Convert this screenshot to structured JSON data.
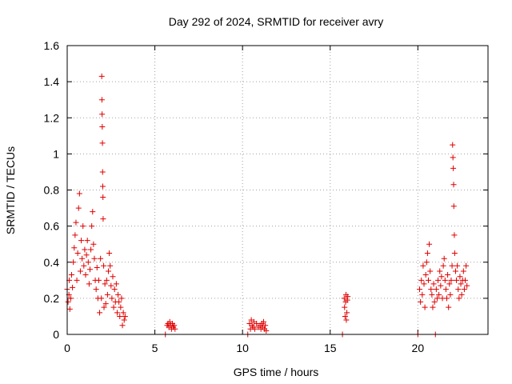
{
  "chart_data": {
    "type": "scatter",
    "title": "Day 292 of 2024, SRMTID for receiver avry",
    "xlabel": "GPS time / hours",
    "ylabel": "SRMTID / TECUs",
    "xlim": [
      0,
      24
    ],
    "ylim": [
      0,
      1.6
    ],
    "xticks": [
      0,
      5,
      10,
      15,
      20
    ],
    "xtick_labels": [
      "0",
      "5",
      "10",
      "15",
      "20"
    ],
    "yticks": [
      0,
      0.2,
      0.4,
      0.6,
      0.8,
      1.0,
      1.2,
      1.4,
      1.6
    ],
    "ytick_labels": [
      "0",
      "0.2",
      "0.4",
      "0.6",
      "0.8",
      "1",
      "1.2",
      "1.4",
      "1.6"
    ],
    "grid": true,
    "marker": "+",
    "color": "#e00000",
    "series": [
      {
        "name": "SRMTID",
        "points": [
          [
            0.0,
            0.25
          ],
          [
            0.05,
            0.18
          ],
          [
            0.1,
            0.22
          ],
          [
            0.12,
            0.3
          ],
          [
            0.15,
            0.14
          ],
          [
            0.2,
            0.2
          ],
          [
            0.25,
            0.33
          ],
          [
            0.3,
            0.26
          ],
          [
            0.35,
            0.4
          ],
          [
            0.4,
            0.48
          ],
          [
            0.45,
            0.55
          ],
          [
            0.5,
            0.62
          ],
          [
            0.55,
            0.3
          ],
          [
            0.6,
            0.45
          ],
          [
            0.65,
            0.7
          ],
          [
            0.7,
            0.78
          ],
          [
            0.75,
            0.35
          ],
          [
            0.8,
            0.52
          ],
          [
            0.85,
            0.42
          ],
          [
            0.9,
            0.6
          ],
          [
            0.95,
            0.38
          ],
          [
            1.0,
            0.47
          ],
          [
            1.05,
            0.33
          ],
          [
            1.1,
            0.44
          ],
          [
            1.15,
            0.52
          ],
          [
            1.2,
            0.4
          ],
          [
            1.25,
            0.28
          ],
          [
            1.3,
            0.36
          ],
          [
            1.35,
            0.47
          ],
          [
            1.4,
            0.6
          ],
          [
            1.45,
            0.68
          ],
          [
            1.5,
            0.5
          ],
          [
            1.55,
            0.42
          ],
          [
            1.6,
            0.3
          ],
          [
            1.65,
            0.25
          ],
          [
            1.7,
            0.37
          ],
          [
            1.75,
            0.2
          ],
          [
            1.8,
            0.3
          ],
          [
            1.85,
            0.12
          ],
          [
            1.9,
            0.42
          ],
          [
            1.95,
            0.2
          ],
          [
            1.97,
            1.43
          ],
          [
            1.98,
            1.3
          ],
          [
            1.99,
            1.22
          ],
          [
            2.0,
            1.15
          ],
          [
            2.01,
            1.06
          ],
          [
            2.02,
            0.9
          ],
          [
            2.03,
            0.82
          ],
          [
            2.04,
            0.76
          ],
          [
            2.05,
            0.64
          ],
          [
            2.08,
            0.38
          ],
          [
            2.1,
            0.15
          ],
          [
            2.15,
            0.28
          ],
          [
            2.2,
            0.17
          ],
          [
            2.25,
            0.3
          ],
          [
            2.3,
            0.22
          ],
          [
            2.35,
            0.35
          ],
          [
            2.4,
            0.45
          ],
          [
            2.45,
            0.38
          ],
          [
            2.5,
            0.27
          ],
          [
            2.55,
            0.2
          ],
          [
            2.6,
            0.32
          ],
          [
            2.65,
            0.15
          ],
          [
            2.7,
            0.25
          ],
          [
            2.75,
            0.18
          ],
          [
            2.8,
            0.28
          ],
          [
            2.85,
            0.12
          ],
          [
            2.9,
            0.22
          ],
          [
            2.95,
            0.18
          ],
          [
            3.0,
            0.1
          ],
          [
            3.05,
            0.15
          ],
          [
            3.1,
            0.2
          ],
          [
            3.15,
            0.05
          ],
          [
            3.2,
            0.12
          ],
          [
            3.25,
            0.08
          ],
          [
            3.3,
            0.1
          ],
          [
            5.6,
            0.0
          ],
          [
            5.7,
            0.05
          ],
          [
            5.75,
            0.06
          ],
          [
            5.8,
            0.04
          ],
          [
            5.85,
            0.07
          ],
          [
            5.9,
            0.05
          ],
          [
            5.95,
            0.03
          ],
          [
            6.0,
            0.06
          ],
          [
            6.05,
            0.04
          ],
          [
            6.1,
            0.05
          ],
          [
            6.15,
            0.03
          ],
          [
            10.3,
            0.0
          ],
          [
            10.4,
            0.06
          ],
          [
            10.45,
            0.03
          ],
          [
            10.5,
            0.08
          ],
          [
            10.55,
            0.05
          ],
          [
            10.6,
            0.04
          ],
          [
            10.65,
            0.07
          ],
          [
            10.7,
            0.03
          ],
          [
            10.8,
            0.06
          ],
          [
            10.9,
            0.04
          ],
          [
            11.0,
            0.05
          ],
          [
            11.05,
            0.03
          ],
          [
            11.1,
            0.06
          ],
          [
            11.15,
            0.04
          ],
          [
            11.2,
            0.07
          ],
          [
            11.25,
            0.03
          ],
          [
            11.3,
            0.05
          ],
          [
            11.35,
            0.02
          ],
          [
            15.7,
            0.0
          ],
          [
            15.8,
            0.2
          ],
          [
            15.82,
            0.15
          ],
          [
            15.85,
            0.1
          ],
          [
            15.88,
            0.18
          ],
          [
            15.9,
            0.22
          ],
          [
            15.92,
            0.08
          ],
          [
            15.95,
            0.12
          ],
          [
            15.98,
            0.19
          ],
          [
            16.0,
            0.21
          ],
          [
            20.0,
            0.0
          ],
          [
            20.1,
            0.25
          ],
          [
            20.15,
            0.18
          ],
          [
            20.2,
            0.3
          ],
          [
            20.25,
            0.22
          ],
          [
            20.3,
            0.38
          ],
          [
            20.35,
            0.28
          ],
          [
            20.4,
            0.15
          ],
          [
            20.45,
            0.33
          ],
          [
            20.5,
            0.4
          ],
          [
            20.55,
            0.45
          ],
          [
            20.6,
            0.3
          ],
          [
            20.65,
            0.5
          ],
          [
            20.7,
            0.35
          ],
          [
            20.75,
            0.25
          ],
          [
            20.8,
            0.22
          ],
          [
            20.85,
            0.15
          ],
          [
            20.9,
            0.28
          ],
          [
            20.95,
            0.18
          ],
          [
            21.0,
            0.0
          ],
          [
            21.05,
            0.25
          ],
          [
            21.1,
            0.2
          ],
          [
            21.15,
            0.3
          ],
          [
            21.2,
            0.22
          ],
          [
            21.25,
            0.35
          ],
          [
            21.3,
            0.27
          ],
          [
            21.35,
            0.32
          ],
          [
            21.4,
            0.2
          ],
          [
            21.45,
            0.38
          ],
          [
            21.5,
            0.42
          ],
          [
            21.55,
            0.3
          ],
          [
            21.6,
            0.25
          ],
          [
            21.65,
            0.2
          ],
          [
            21.7,
            0.33
          ],
          [
            21.75,
            0.15
          ],
          [
            21.8,
            0.28
          ],
          [
            21.85,
            0.22
          ],
          [
            21.9,
            0.3
          ],
          [
            21.95,
            0.38
          ],
          [
            21.98,
            1.05
          ],
          [
            22.0,
            0.98
          ],
          [
            22.02,
            0.92
          ],
          [
            22.04,
            0.83
          ],
          [
            22.05,
            0.71
          ],
          [
            22.08,
            0.55
          ],
          [
            22.1,
            0.45
          ],
          [
            22.15,
            0.35
          ],
          [
            22.2,
            0.3
          ],
          [
            22.25,
            0.38
          ],
          [
            22.3,
            0.25
          ],
          [
            22.35,
            0.2
          ],
          [
            22.4,
            0.32
          ],
          [
            22.45,
            0.28
          ],
          [
            22.5,
            0.22
          ],
          [
            22.55,
            0.3
          ],
          [
            22.6,
            0.35
          ],
          [
            22.65,
            0.25
          ],
          [
            22.7,
            0.3
          ],
          [
            22.75,
            0.38
          ],
          [
            22.8,
            0.27
          ]
        ]
      }
    ]
  }
}
